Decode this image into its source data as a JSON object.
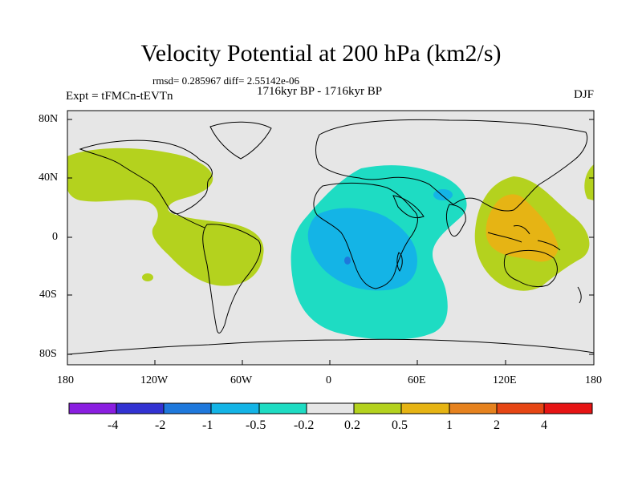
{
  "title": "Velocity Potential at 200 hPa (km2/s)",
  "stats": "rmsd= 0.285967 diff= 2.55142e-06",
  "experiment": "Expt = tFMCn-tEVTn",
  "period": "1716kyr BP - 1716kyr BP",
  "season": "DJF",
  "lat_ticks": [
    "80N",
    "40N",
    "0",
    "40S",
    "80S"
  ],
  "lon_ticks": [
    "180",
    "120W",
    "60W",
    "0",
    "60E",
    "120E",
    "180"
  ],
  "colorbar": {
    "labels": [
      "-4",
      "-2",
      "-1",
      "-0.5",
      "-0.2",
      "0.2",
      "0.5",
      "1",
      "2",
      "4"
    ],
    "colors": [
      "#8a1ee0",
      "#3232d2",
      "#1e78dc",
      "#14b4e6",
      "#1edcc3",
      "#e6e6e6",
      "#b4d21e",
      "#e6b414",
      "#e6821e",
      "#e64614",
      "#e61414"
    ]
  },
  "map": {
    "background": "#e6e6e6",
    "land_outline": "#000000"
  }
}
